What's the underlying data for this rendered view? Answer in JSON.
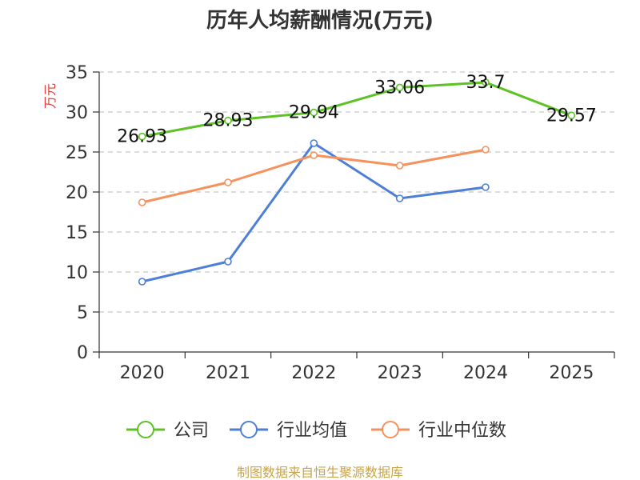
{
  "chart_data": {
    "type": "line",
    "title": "历年人均薪酬情况(万元)",
    "ylabel": "万元",
    "xlabel": "",
    "categories": [
      "2020",
      "2021",
      "2022",
      "2023",
      "2024",
      "2025"
    ],
    "ylim": [
      0,
      35
    ],
    "yticks": [
      0,
      5,
      10,
      15,
      20,
      25,
      30,
      35
    ],
    "grid": true,
    "legend_position": "bottom",
    "series": [
      {
        "name": "公司",
        "color": "#5cc226",
        "values": [
          26.93,
          28.93,
          29.94,
          33.06,
          33.7,
          29.57
        ],
        "labels": [
          "26.93",
          "28.93",
          "29.94",
          "33.06",
          "33.7",
          "29.57"
        ]
      },
      {
        "name": "行业均值",
        "color": "#4e7fd6",
        "values": [
          8.8,
          11.3,
          26.1,
          19.2,
          20.6,
          null
        ]
      },
      {
        "name": "行业中位数",
        "color": "#f5915c",
        "values": [
          18.7,
          21.2,
          24.6,
          23.3,
          25.3,
          null
        ]
      }
    ],
    "source": "制图数据来自恒生聚源数据库",
    "source_color": "#c8a44a",
    "ylabel_color": "#e03b3b"
  }
}
